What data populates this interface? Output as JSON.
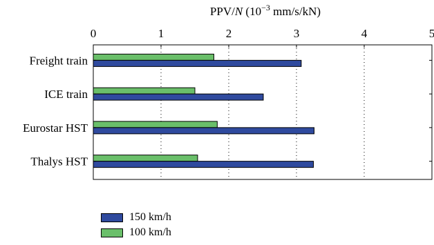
{
  "chart_data": {
    "type": "bar",
    "orientation": "horizontal",
    "title": "",
    "xlabel": "PPV/N (10⁻³ mm/s/kN)",
    "xlabel_parts": {
      "prefix": "PPV/",
      "italic": "N",
      "mid": " (10",
      "sup": "−3",
      "suffix": " mm/s/kN)"
    },
    "xaxis_position": "top",
    "xlim": [
      0,
      5
    ],
    "xticks": [
      0,
      1,
      2,
      3,
      4,
      5
    ],
    "grid": "vertical dotted",
    "categories": [
      "Freight train",
      "ICE train",
      "Eurostar HST",
      "Thalys HST"
    ],
    "series": [
      {
        "name": "100 km/h",
        "color": "#6abf6a",
        "values": [
          1.78,
          1.5,
          1.83,
          1.54
        ]
      },
      {
        "name": "150 km/h",
        "color": "#2f4a9e",
        "values": [
          3.07,
          2.51,
          3.26,
          3.25
        ]
      }
    ],
    "legend_position": "bottom-left",
    "legend": [
      "150 km/h",
      "100 km/h"
    ]
  }
}
